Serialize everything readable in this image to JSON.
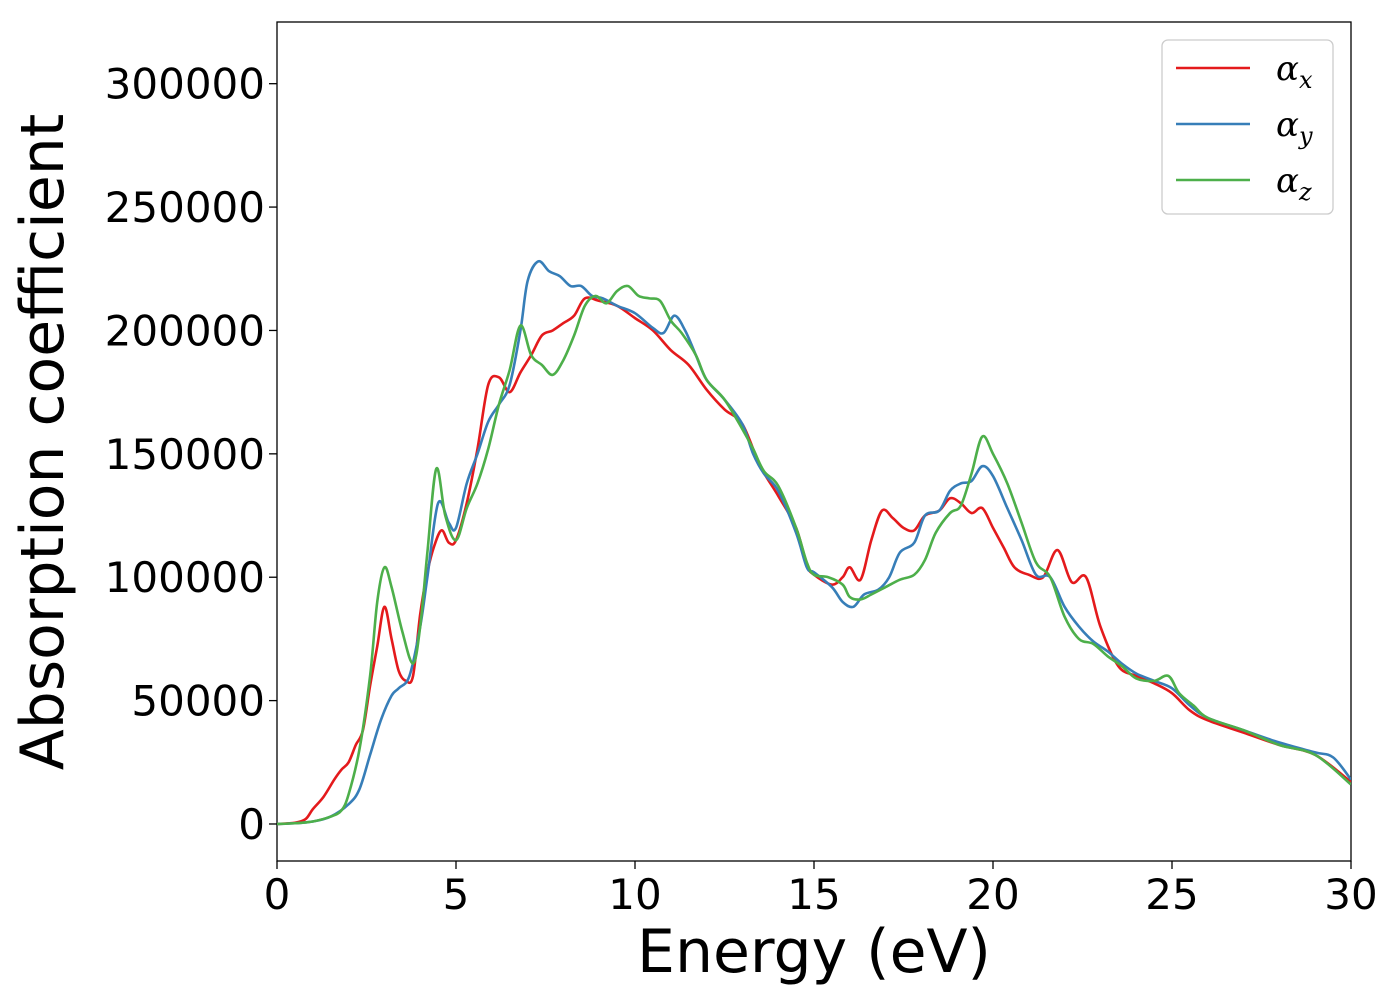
{
  "chart_data": {
    "type": "line",
    "title": "",
    "xlabel": "Energy (eV)",
    "ylabel": "Absorption coefficient",
    "xlim": [
      0,
      30
    ],
    "ylim": [
      -15000,
      325000
    ],
    "grid": false,
    "legend_position": "top-right",
    "x_ticks": [
      0,
      5,
      10,
      15,
      20,
      25,
      30
    ],
    "x_tick_labels": [
      "0",
      "5",
      "10",
      "15",
      "20",
      "25",
      "30"
    ],
    "y_ticks": [
      0,
      50000,
      100000,
      150000,
      200000,
      250000,
      300000
    ],
    "y_tick_labels": [
      "0",
      "50000",
      "100000",
      "150000",
      "200000",
      "250000",
      "300000"
    ],
    "series": [
      {
        "name": "α",
        "subscript": "x",
        "color": "#e41a1c",
        "points": [
          [
            0,
            0
          ],
          [
            0.5,
            500
          ],
          [
            0.8,
            2000
          ],
          [
            1.0,
            6000
          ],
          [
            1.3,
            11000
          ],
          [
            1.6,
            18000
          ],
          [
            1.8,
            22000
          ],
          [
            2.0,
            25000
          ],
          [
            2.2,
            32000
          ],
          [
            2.4,
            38000
          ],
          [
            2.6,
            56000
          ],
          [
            2.8,
            72000
          ],
          [
            3.0,
            88000
          ],
          [
            3.2,
            75000
          ],
          [
            3.4,
            62000
          ],
          [
            3.6,
            58000
          ],
          [
            3.8,
            60000
          ],
          [
            4.0,
            85000
          ],
          [
            4.2,
            102000
          ],
          [
            4.4,
            113000
          ],
          [
            4.6,
            119000
          ],
          [
            4.8,
            114000
          ],
          [
            5.0,
            115000
          ],
          [
            5.3,
            130000
          ],
          [
            5.6,
            152000
          ],
          [
            5.9,
            178000
          ],
          [
            6.2,
            181000
          ],
          [
            6.5,
            175000
          ],
          [
            6.8,
            183000
          ],
          [
            7.1,
            190000
          ],
          [
            7.4,
            198000
          ],
          [
            7.7,
            200000
          ],
          [
            8.0,
            203000
          ],
          [
            8.3,
            206000
          ],
          [
            8.6,
            213000
          ],
          [
            9.0,
            212000
          ],
          [
            9.5,
            210000
          ],
          [
            10.0,
            205000
          ],
          [
            10.5,
            200000
          ],
          [
            11.0,
            192000
          ],
          [
            11.5,
            186000
          ],
          [
            12.0,
            176000
          ],
          [
            12.5,
            168000
          ],
          [
            13.0,
            162000
          ],
          [
            13.5,
            145000
          ],
          [
            14.0,
            133000
          ],
          [
            14.5,
            120000
          ],
          [
            14.8,
            105000
          ],
          [
            15.0,
            101000
          ],
          [
            15.5,
            97000
          ],
          [
            15.8,
            100000
          ],
          [
            16.0,
            104000
          ],
          [
            16.3,
            99000
          ],
          [
            16.6,
            115000
          ],
          [
            16.9,
            127000
          ],
          [
            17.2,
            124000
          ],
          [
            17.5,
            120000
          ],
          [
            17.8,
            119000
          ],
          [
            18.1,
            125000
          ],
          [
            18.5,
            127000
          ],
          [
            18.8,
            132000
          ],
          [
            19.1,
            130000
          ],
          [
            19.4,
            126000
          ],
          [
            19.7,
            128000
          ],
          [
            20.0,
            120000
          ],
          [
            20.3,
            112000
          ],
          [
            20.6,
            104000
          ],
          [
            21.0,
            101000
          ],
          [
            21.4,
            100000
          ],
          [
            21.8,
            111000
          ],
          [
            22.2,
            98000
          ],
          [
            22.6,
            100000
          ],
          [
            23.0,
            80000
          ],
          [
            23.5,
            64000
          ],
          [
            24.0,
            60000
          ],
          [
            24.5,
            57000
          ],
          [
            25.0,
            53000
          ],
          [
            25.5,
            46000
          ],
          [
            26.0,
            42000
          ],
          [
            27.0,
            37000
          ],
          [
            28.0,
            32000
          ],
          [
            29.0,
            28000
          ],
          [
            30.0,
            17000
          ]
        ]
      },
      {
        "name": "α",
        "subscript": "y",
        "color": "#377eb8",
        "points": [
          [
            0,
            0
          ],
          [
            0.5,
            300
          ],
          [
            1.0,
            1000
          ],
          [
            1.5,
            3000
          ],
          [
            2.0,
            8000
          ],
          [
            2.3,
            14000
          ],
          [
            2.6,
            28000
          ],
          [
            2.9,
            42000
          ],
          [
            3.2,
            52000
          ],
          [
            3.4,
            55000
          ],
          [
            3.7,
            60000
          ],
          [
            4.0,
            80000
          ],
          [
            4.2,
            100000
          ],
          [
            4.5,
            130000
          ],
          [
            4.8,
            122000
          ],
          [
            5.0,
            120000
          ],
          [
            5.3,
            138000
          ],
          [
            5.6,
            150000
          ],
          [
            5.9,
            163000
          ],
          [
            6.2,
            170000
          ],
          [
            6.5,
            178000
          ],
          [
            6.8,
            200000
          ],
          [
            7.0,
            220000
          ],
          [
            7.3,
            228000
          ],
          [
            7.6,
            224000
          ],
          [
            7.9,
            222000
          ],
          [
            8.2,
            218000
          ],
          [
            8.5,
            218000
          ],
          [
            8.8,
            214000
          ],
          [
            9.1,
            213000
          ],
          [
            9.5,
            210000
          ],
          [
            10.0,
            207000
          ],
          [
            10.5,
            201000
          ],
          [
            10.8,
            199000
          ],
          [
            11.1,
            206000
          ],
          [
            11.4,
            200000
          ],
          [
            11.7,
            190000
          ],
          [
            12.0,
            180000
          ],
          [
            12.5,
            172000
          ],
          [
            13.0,
            162000
          ],
          [
            13.3,
            150000
          ],
          [
            13.6,
            142000
          ],
          [
            14.0,
            135000
          ],
          [
            14.5,
            118000
          ],
          [
            14.8,
            104000
          ],
          [
            15.0,
            102000
          ],
          [
            15.5,
            96000
          ],
          [
            15.8,
            90000
          ],
          [
            16.1,
            88000
          ],
          [
            16.4,
            93000
          ],
          [
            16.8,
            95000
          ],
          [
            17.1,
            100000
          ],
          [
            17.4,
            110000
          ],
          [
            17.8,
            114000
          ],
          [
            18.1,
            125000
          ],
          [
            18.5,
            127000
          ],
          [
            18.8,
            135000
          ],
          [
            19.1,
            138000
          ],
          [
            19.4,
            139000
          ],
          [
            19.7,
            145000
          ],
          [
            20.0,
            141000
          ],
          [
            20.4,
            128000
          ],
          [
            20.8,
            115000
          ],
          [
            21.2,
            101000
          ],
          [
            21.6,
            100000
          ],
          [
            22.0,
            88000
          ],
          [
            22.4,
            80000
          ],
          [
            22.8,
            74000
          ],
          [
            23.2,
            70000
          ],
          [
            23.6,
            65000
          ],
          [
            24.0,
            61000
          ],
          [
            24.5,
            58000
          ],
          [
            25.0,
            55000
          ],
          [
            25.5,
            48000
          ],
          [
            26.0,
            43000
          ],
          [
            27.0,
            38000
          ],
          [
            28.0,
            33000
          ],
          [
            29.0,
            29000
          ],
          [
            29.5,
            27000
          ],
          [
            30.0,
            18000
          ]
        ]
      },
      {
        "name": "α",
        "subscript": "z",
        "color": "#4daf4a",
        "points": [
          [
            0,
            0
          ],
          [
            0.5,
            300
          ],
          [
            1.0,
            1000
          ],
          [
            1.5,
            3000
          ],
          [
            1.8,
            5500
          ],
          [
            2.0,
            12000
          ],
          [
            2.3,
            30000
          ],
          [
            2.6,
            60000
          ],
          [
            2.8,
            90000
          ],
          [
            3.0,
            104000
          ],
          [
            3.2,
            96000
          ],
          [
            3.5,
            78000
          ],
          [
            3.8,
            65000
          ],
          [
            4.0,
            80000
          ],
          [
            4.2,
            110000
          ],
          [
            4.45,
            144000
          ],
          [
            4.7,
            125000
          ],
          [
            5.0,
            115000
          ],
          [
            5.3,
            128000
          ],
          [
            5.6,
            138000
          ],
          [
            5.9,
            152000
          ],
          [
            6.2,
            170000
          ],
          [
            6.5,
            184000
          ],
          [
            6.8,
            202000
          ],
          [
            7.1,
            190000
          ],
          [
            7.4,
            186000
          ],
          [
            7.7,
            182000
          ],
          [
            8.0,
            188000
          ],
          [
            8.3,
            198000
          ],
          [
            8.6,
            210000
          ],
          [
            8.9,
            214000
          ],
          [
            9.2,
            211000
          ],
          [
            9.5,
            216000
          ],
          [
            9.8,
            218000
          ],
          [
            10.1,
            214000
          ],
          [
            10.4,
            213000
          ],
          [
            10.7,
            212000
          ],
          [
            11.0,
            204000
          ],
          [
            11.3,
            199000
          ],
          [
            11.7,
            190000
          ],
          [
            12.0,
            180000
          ],
          [
            12.5,
            172000
          ],
          [
            13.0,
            160000
          ],
          [
            13.3,
            152000
          ],
          [
            13.6,
            143000
          ],
          [
            14.0,
            137000
          ],
          [
            14.5,
            120000
          ],
          [
            14.8,
            106000
          ],
          [
            15.0,
            101000
          ],
          [
            15.4,
            100000
          ],
          [
            15.8,
            97000
          ],
          [
            16.0,
            92000
          ],
          [
            16.3,
            91000
          ],
          [
            16.6,
            93000
          ],
          [
            17.0,
            96000
          ],
          [
            17.4,
            99000
          ],
          [
            17.8,
            101000
          ],
          [
            18.1,
            107000
          ],
          [
            18.4,
            118000
          ],
          [
            18.8,
            126000
          ],
          [
            19.1,
            129000
          ],
          [
            19.4,
            142000
          ],
          [
            19.7,
            157000
          ],
          [
            20.0,
            150000
          ],
          [
            20.4,
            138000
          ],
          [
            20.8,
            122000
          ],
          [
            21.2,
            106000
          ],
          [
            21.6,
            100000
          ],
          [
            22.0,
            84000
          ],
          [
            22.4,
            75000
          ],
          [
            22.8,
            73000
          ],
          [
            23.2,
            68000
          ],
          [
            23.6,
            64000
          ],
          [
            24.0,
            59000
          ],
          [
            24.5,
            58000
          ],
          [
            24.9,
            60000
          ],
          [
            25.2,
            53000
          ],
          [
            25.6,
            48000
          ],
          [
            26.0,
            43000
          ],
          [
            27.0,
            38000
          ],
          [
            28.0,
            32000
          ],
          [
            29.0,
            28000
          ],
          [
            30.0,
            16000
          ]
        ]
      }
    ]
  }
}
